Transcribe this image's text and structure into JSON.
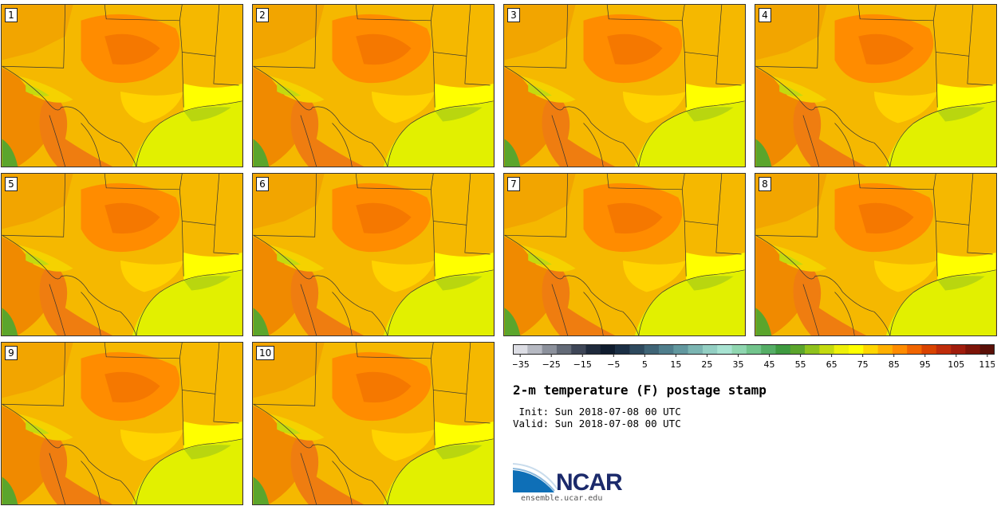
{
  "panels": [
    {
      "label": "1"
    },
    {
      "label": "2"
    },
    {
      "label": "3"
    },
    {
      "label": "4"
    },
    {
      "label": "5"
    },
    {
      "label": "6"
    },
    {
      "label": "7"
    },
    {
      "label": "8"
    },
    {
      "label": "9"
    },
    {
      "label": "10"
    }
  ],
  "legend": {
    "colors": [
      "#dcdde4",
      "#b6b9c2",
      "#8c919c",
      "#636a77",
      "#3e4657",
      "#1f2a3c",
      "#0f1c2e",
      "#1b2f45",
      "#2e4a5e",
      "#3f6476",
      "#4f7e8c",
      "#62989f",
      "#7bb5b2",
      "#93cfc3",
      "#a8e3d2",
      "#8fd6b0",
      "#72c48c",
      "#55ae66",
      "#3e9a40",
      "#5ba52c",
      "#8fc21d",
      "#c4da0f",
      "#eef00a",
      "#ffff00",
      "#ffd600",
      "#ffb000",
      "#ff8c00",
      "#f16500",
      "#d94300",
      "#bf2c0a",
      "#a01c0c",
      "#7d1408",
      "#5a1008"
    ],
    "tick_labels": [
      "−35",
      "−25",
      "−15",
      "−5",
      "5",
      "15",
      "25",
      "35",
      "45",
      "55",
      "65",
      "75",
      "85",
      "95",
      "105",
      "115"
    ]
  },
  "title": "2-m temperature (F) postage stamp",
  "init_text": " Init: Sun 2018-07-08 00 UTC",
  "valid_text": "Valid: Sun 2018-07-08 00 UTC",
  "logo": {
    "name": "NCAR",
    "url": "ensemble.ucar.edu"
  }
}
